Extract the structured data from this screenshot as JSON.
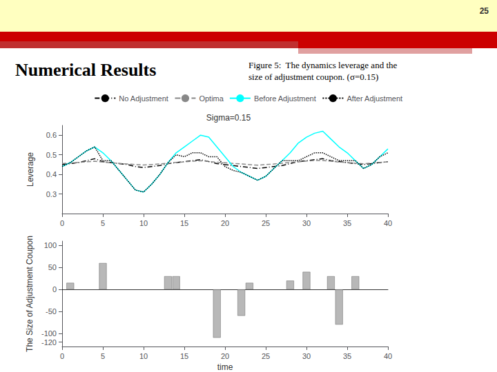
{
  "chart_data": [
    {
      "type": "line",
      "title": "Sigma=0.15",
      "annotations": [
        "25",
        "Numerical Results",
        "Figure 5:  The dynamics leverage and the\nsize of adjustment coupon. (σ=0.15)"
      ],
      "x": [
        0,
        1,
        2,
        3,
        4,
        5,
        6,
        7,
        8,
        9,
        10,
        11,
        12,
        13,
        14,
        15,
        16,
        17,
        18,
        19,
        20,
        21,
        22,
        23,
        24,
        25,
        26,
        27,
        28,
        29,
        30,
        31,
        32,
        33,
        34,
        35,
        36,
        37,
        38,
        39,
        40
      ],
      "xlim": [
        0,
        40
      ],
      "xticks": [
        0,
        5,
        10,
        15,
        20,
        25,
        30,
        35,
        40
      ],
      "ylabel": "Leverage",
      "ylim": [
        0.2,
        0.65
      ],
      "yticks": [
        0.3,
        0.4,
        0.5,
        0.6
      ],
      "grid": false,
      "legend": "top",
      "series": [
        {
          "name": "No Adjustment",
          "color": "black",
          "line_style": "dashdot",
          "values": [
            0.45,
            0.455,
            0.46,
            0.47,
            0.48,
            0.465,
            0.46,
            0.455,
            0.45,
            0.44,
            0.435,
            0.44,
            0.445,
            0.455,
            0.46,
            0.465,
            0.47,
            0.475,
            0.465,
            0.455,
            0.45,
            0.445,
            0.44,
            0.435,
            0.43,
            0.435,
            0.44,
            0.445,
            0.455,
            0.465,
            0.47,
            0.475,
            0.48,
            0.47,
            0.465,
            0.46,
            0.455,
            0.45,
            0.455,
            0.46,
            0.465
          ]
        },
        {
          "name": "Optima",
          "color": "#888888",
          "line_style": "dashed",
          "values": [
            0.455,
            0.458,
            0.461,
            0.464,
            0.467,
            0.463,
            0.459,
            0.456,
            0.453,
            0.45,
            0.448,
            0.45,
            0.453,
            0.457,
            0.461,
            0.464,
            0.467,
            0.47,
            0.466,
            0.462,
            0.459,
            0.456,
            0.453,
            0.45,
            0.447,
            0.45,
            0.453,
            0.457,
            0.461,
            0.464,
            0.468,
            0.471,
            0.471,
            0.467,
            0.463,
            0.46,
            0.457,
            0.454,
            0.457,
            0.461,
            0.464
          ]
        },
        {
          "name": "Before Adjustment",
          "color": "cyan",
          "line_style": "solid",
          "values": [
            0.44,
            0.46,
            0.49,
            0.52,
            0.54,
            0.51,
            0.47,
            0.42,
            0.37,
            0.32,
            0.31,
            0.35,
            0.4,
            0.46,
            0.51,
            0.54,
            0.57,
            0.6,
            0.59,
            0.54,
            0.49,
            0.44,
            0.41,
            0.39,
            0.37,
            0.39,
            0.43,
            0.47,
            0.51,
            0.56,
            0.59,
            0.61,
            0.62,
            0.58,
            0.54,
            0.51,
            0.47,
            0.43,
            0.45,
            0.49,
            0.53
          ]
        },
        {
          "name": "After Adjustment",
          "color": "black",
          "line_style": "dotted",
          "values": [
            0.44,
            0.46,
            0.49,
            0.52,
            0.54,
            0.47,
            0.47,
            0.42,
            0.37,
            0.32,
            0.31,
            0.35,
            0.4,
            0.46,
            0.5,
            0.49,
            0.51,
            0.51,
            0.49,
            0.49,
            0.44,
            0.42,
            0.41,
            0.39,
            0.37,
            0.39,
            0.43,
            0.47,
            0.47,
            0.47,
            0.49,
            0.51,
            0.51,
            0.49,
            0.47,
            0.47,
            0.47,
            0.43,
            0.45,
            0.49,
            0.51
          ]
        }
      ]
    },
    {
      "type": "bar",
      "x": [
        1,
        5,
        13,
        14,
        19,
        22,
        23,
        28,
        30,
        33,
        34,
        36
      ],
      "values": [
        15,
        60,
        30,
        30,
        -110,
        -60,
        15,
        20,
        40,
        30,
        -80,
        30
      ],
      "color": "#b8b8b8",
      "xlabel": "time",
      "ylabel": "The Size of Adjustment Coupon",
      "xlim": [
        0,
        40
      ],
      "xticks": [
        0,
        5,
        10,
        15,
        20,
        25,
        30,
        35,
        40
      ],
      "ylim": [
        -130,
        110
      ],
      "yticks": [
        -120,
        -100,
        -50,
        0,
        50,
        100
      ],
      "grid": false
    }
  ]
}
